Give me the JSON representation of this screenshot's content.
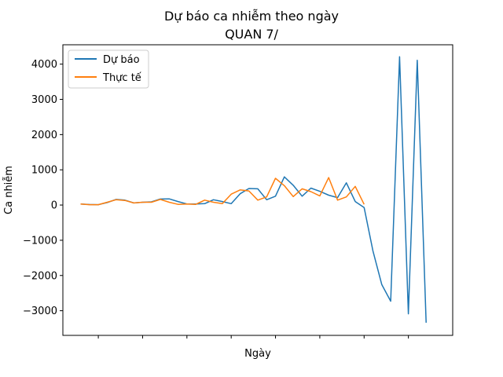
{
  "chart_data": {
    "type": "line",
    "title": "Dự báo ca nhiễm theo ngày",
    "subtitle": "QUAN 7/",
    "xlabel": "Ngày",
    "ylabel": "Ca nhiễm",
    "ylim": [
      -3700,
      4550
    ],
    "xlim": [
      -2,
      42
    ],
    "yticks": [
      -3000,
      -2000,
      -1000,
      0,
      1000,
      2000,
      3000,
      4000
    ],
    "ytick_labels": [
      "−3000",
      "−2000",
      "−1000",
      "0",
      "1000",
      "2000",
      "3000",
      "4000"
    ],
    "xticks": [
      2,
      7,
      12,
      17,
      22,
      27,
      32,
      37
    ],
    "grid": false,
    "legend": "top-left",
    "series": [
      {
        "name": "Dự báo",
        "color": "#1f77b4",
        "x": [
          0,
          1,
          2,
          3,
          4,
          5,
          6,
          7,
          8,
          9,
          10,
          11,
          12,
          13,
          14,
          15,
          16,
          17,
          18,
          19,
          20,
          21,
          22,
          23,
          24,
          25,
          26,
          27,
          28,
          29,
          30,
          31,
          32,
          33,
          34,
          35,
          36,
          37,
          38,
          39,
          40
        ],
        "values": [
          30,
          15,
          10,
          70,
          160,
          140,
          60,
          80,
          90,
          170,
          175,
          100,
          30,
          30,
          40,
          150,
          100,
          40,
          320,
          470,
          460,
          150,
          250,
          800,
          560,
          250,
          480,
          390,
          280,
          210,
          630,
          100,
          -70,
          -1300,
          -2260,
          -2730,
          4210,
          -3090,
          4110,
          -3340,
          null
        ]
      },
      {
        "name": "Thực tế",
        "color": "#ff7f0e",
        "x": [
          0,
          1,
          2,
          3,
          4,
          5,
          6,
          7,
          8,
          9,
          10,
          11,
          12,
          13,
          14,
          15,
          16,
          17,
          18,
          19,
          20,
          21,
          22,
          23,
          24,
          25,
          26,
          27,
          28,
          29,
          30,
          31,
          32
        ],
        "values": [
          30,
          10,
          10,
          80,
          150,
          130,
          60,
          80,
          80,
          160,
          80,
          20,
          30,
          20,
          140,
          80,
          40,
          310,
          430,
          400,
          140,
          230,
          760,
          550,
          240,
          460,
          380,
          260,
          780,
          140,
          230,
          530,
          20
        ]
      }
    ]
  }
}
